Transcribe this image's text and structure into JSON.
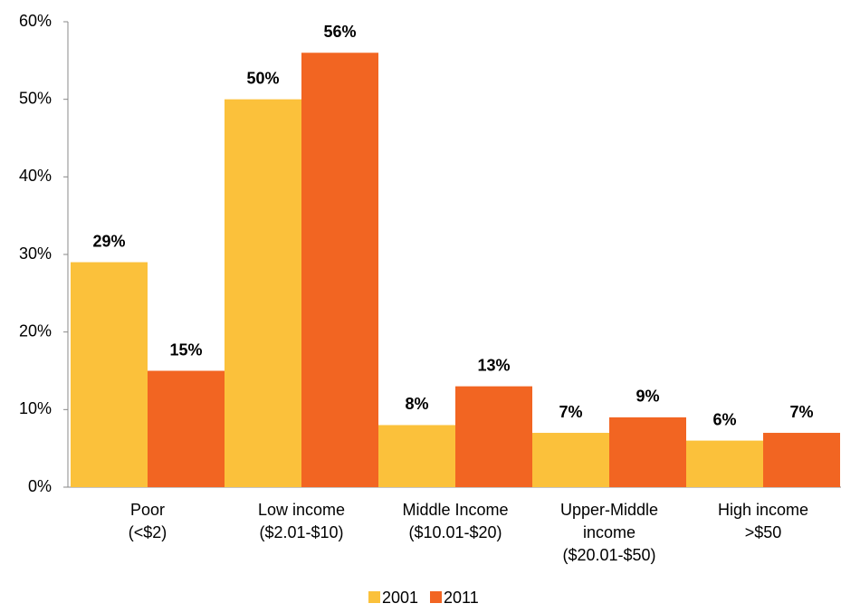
{
  "chart_data": {
    "type": "bar",
    "categories": [
      [
        "Poor",
        "(<$2)"
      ],
      [
        "Low income",
        "($2.01-$10)"
      ],
      [
        "Middle Income",
        "($10.01-$20)"
      ],
      [
        "Upper-Middle",
        "income",
        "($20.01-$50)"
      ],
      [
        "High income",
        ">$50"
      ]
    ],
    "series": [
      {
        "name": "2001",
        "color": "#fbc13b",
        "values": [
          29,
          50,
          8,
          7,
          6
        ],
        "value_labels": [
          "29%",
          "50%",
          "8%",
          "7%",
          "6%"
        ]
      },
      {
        "name": "2011",
        "color": "#f26522",
        "values": [
          15,
          56,
          13,
          9,
          7
        ],
        "value_labels": [
          "15%",
          "56%",
          "13%",
          "9%",
          "7%"
        ]
      }
    ],
    "ylim": [
      0,
      60
    ],
    "yticks": [
      {
        "value": 0,
        "label": "0%"
      },
      {
        "value": 10,
        "label": "10%"
      },
      {
        "value": 20,
        "label": "20%"
      },
      {
        "value": 30,
        "label": "30%"
      },
      {
        "value": 40,
        "label": "40%"
      },
      {
        "value": 50,
        "label": "50%"
      },
      {
        "value": 60,
        "label": "60%"
      }
    ],
    "grid": false,
    "legend": "bottom"
  }
}
